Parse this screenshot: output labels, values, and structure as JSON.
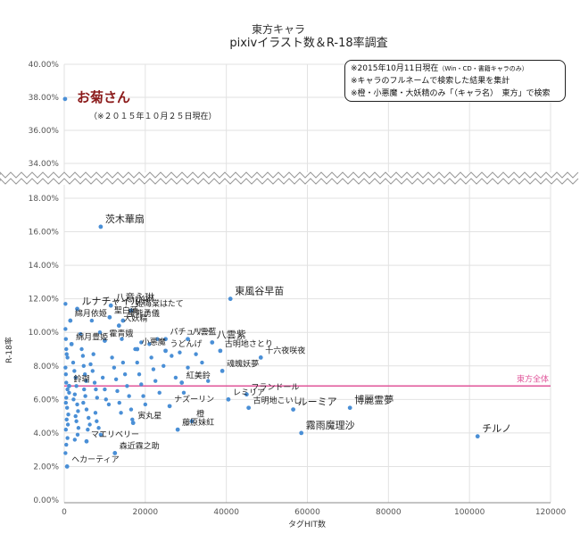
{
  "chart_data": {
    "type": "scatter",
    "title": "東方キャラ",
    "subtitle": "pixivイラスト数＆R-18率調査",
    "xlabel": "タグHIT数",
    "ylabel": "R-18率",
    "xlim": [
      0,
      120000
    ],
    "x_ticks": [
      "0",
      "20000",
      "40000",
      "60000",
      "80000",
      "100000",
      "120000"
    ],
    "upper_ylim": [
      0.33,
      0.4
    ],
    "upper_y_ticks": [
      "40.00%",
      "38.00%",
      "36.00%",
      "34.00%"
    ],
    "lower_ylim": [
      0,
      0.18
    ],
    "lower_y_ticks": [
      "18.00%",
      "16.00%",
      "14.00%",
      "12.00%",
      "10.00%",
      "8.00%",
      "6.00%",
      "4.00%",
      "2.00%",
      "0.00%"
    ],
    "reference_line": {
      "label": "東方全体",
      "y": 0.068,
      "color": "#e0559a"
    },
    "notes": [
      {
        "text": "※2015年10月11日現在",
        "small": "（Win・CD・書籍キャラのみ）"
      },
      {
        "text": "※キャラのフルネームで検索した結果を集計"
      },
      {
        "text": "※橙・小悪魔・大妖精のみ「（キャラ名）　東方」で検索"
      }
    ],
    "special": {
      "label": "お菊さん",
      "note": "（※２０１５年１０月２５日現在）",
      "x": 200,
      "y": 0.379,
      "color": "#8b1a1a"
    },
    "point_color": "#4a8fd6",
    "labeled_points": [
      {
        "name": "茨木華扇",
        "x": 9000,
        "y": 0.163,
        "color": "#e03030",
        "big": true
      },
      {
        "name": "東風谷早苗",
        "x": 41000,
        "y": 0.12,
        "big": true
      },
      {
        "name": "ルナチャイルド",
        "x": 3200,
        "y": 0.114,
        "big": true
      },
      {
        "name": "八意永琳",
        "x": 11500,
        "y": 0.116,
        "big": true
      },
      {
        "name": "姫海棠はたて",
        "x": 16500,
        "y": 0.113
      },
      {
        "name": "綿月依姫",
        "x": 1500,
        "y": 0.107
      },
      {
        "name": "聖白蓮",
        "x": 11200,
        "y": 0.109
      },
      {
        "name": "星熊勇儀",
        "x": 14500,
        "y": 0.107
      },
      {
        "name": "大妖精",
        "x": 13500,
        "y": 0.104
      },
      {
        "name": "八雲紫",
        "x": 36500,
        "y": 0.094,
        "big": true
      },
      {
        "name": "パチュリー",
        "x": 25000,
        "y": 0.096
      },
      {
        "name": "八雲藍",
        "x": 30500,
        "y": 0.096
      },
      {
        "name": "霍青娥",
        "x": 10000,
        "y": 0.095
      },
      {
        "name": "綿月豊姫",
        "x": 1800,
        "y": 0.093
      },
      {
        "name": "古明地さとり",
        "x": 38500,
        "y": 0.089
      },
      {
        "name": "小悪魔",
        "x": 18000,
        "y": 0.09
      },
      {
        "name": "うどんげ",
        "x": 25000,
        "y": 0.089
      },
      {
        "name": "十六夜咲夜",
        "x": 48500,
        "y": 0.085
      },
      {
        "name": "魂魄妖夢",
        "x": 39000,
        "y": 0.077
      },
      {
        "name": "鈴瑚",
        "x": 1200,
        "y": 0.068
      },
      {
        "name": "紅美鈴",
        "x": 29000,
        "y": 0.07
      },
      {
        "name": "フランドール",
        "x": 45000,
        "y": 0.063
      },
      {
        "name": "レミリア",
        "x": 40500,
        "y": 0.06
      },
      {
        "name": "博麗霊夢",
        "x": 70500,
        "y": 0.055,
        "big": true
      },
      {
        "name": "ナズーリン",
        "x": 26000,
        "y": 0.056
      },
      {
        "name": "古明地こいし",
        "x": 45500,
        "y": 0.055
      },
      {
        "name": "ルーミア",
        "x": 56500,
        "y": 0.054,
        "big": true
      },
      {
        "name": "橙",
        "x": 31500,
        "y": 0.047
      },
      {
        "name": "寅丸星",
        "x": 17000,
        "y": 0.046
      },
      {
        "name": "藤原妹紅",
        "x": 28000,
        "y": 0.042
      },
      {
        "name": "チルノ",
        "x": 102000,
        "y": 0.038,
        "big": true
      },
      {
        "name": "霧雨魔理沙",
        "x": 58500,
        "y": 0.04,
        "big": true
      },
      {
        "name": "マエリベリー",
        "x": 5500,
        "y": 0.035
      },
      {
        "name": "森近霖之助",
        "x": 12500,
        "y": 0.028
      },
      {
        "name": "ヘカーティア",
        "x": 700,
        "y": 0.02
      }
    ],
    "other_points": [
      [
        300,
        0.117
      ],
      [
        300,
        0.102
      ],
      [
        400,
        0.096
      ],
      [
        500,
        0.09
      ],
      [
        600,
        0.087
      ],
      [
        800,
        0.085
      ],
      [
        300,
        0.079
      ],
      [
        400,
        0.075
      ],
      [
        500,
        0.07
      ],
      [
        800,
        0.066
      ],
      [
        1200,
        0.064
      ],
      [
        500,
        0.061
      ],
      [
        400,
        0.058
      ],
      [
        700,
        0.055
      ],
      [
        1000,
        0.051
      ],
      [
        600,
        0.048
      ],
      [
        900,
        0.045
      ],
      [
        400,
        0.042
      ],
      [
        800,
        0.037
      ],
      [
        500,
        0.033
      ],
      [
        300,
        0.028
      ],
      [
        2200,
        0.082
      ],
      [
        2500,
        0.077
      ],
      [
        2800,
        0.073
      ],
      [
        3000,
        0.068
      ],
      [
        2600,
        0.063
      ],
      [
        2300,
        0.06
      ],
      [
        3200,
        0.057
      ],
      [
        3400,
        0.053
      ],
      [
        2800,
        0.05
      ],
      [
        3000,
        0.047
      ],
      [
        3500,
        0.043
      ],
      [
        3300,
        0.039
      ],
      [
        2600,
        0.036
      ],
      [
        4000,
        0.099
      ],
      [
        4300,
        0.09
      ],
      [
        4600,
        0.086
      ],
      [
        4800,
        0.08
      ],
      [
        5100,
        0.075
      ],
      [
        5400,
        0.071
      ],
      [
        4900,
        0.066
      ],
      [
        5200,
        0.062
      ],
      [
        4700,
        0.058
      ],
      [
        5500,
        0.054
      ],
      [
        6000,
        0.049
      ],
      [
        6300,
        0.045
      ],
      [
        5800,
        0.042
      ],
      [
        6500,
        0.081
      ],
      [
        7000,
        0.077
      ],
      [
        7200,
        0.087
      ],
      [
        7500,
        0.07
      ],
      [
        7800,
        0.066
      ],
      [
        8100,
        0.061
      ],
      [
        7700,
        0.052
      ],
      [
        8000,
        0.047
      ],
      [
        8500,
        0.043
      ],
      [
        9000,
        0.039
      ],
      [
        9500,
        0.073
      ],
      [
        10000,
        0.066
      ],
      [
        10300,
        0.06
      ],
      [
        11000,
        0.057
      ],
      [
        11800,
        0.085
      ],
      [
        12300,
        0.079
      ],
      [
        12800,
        0.072
      ],
      [
        13100,
        0.065
      ],
      [
        13600,
        0.058
      ],
      [
        14000,
        0.052
      ],
      [
        14500,
        0.082
      ],
      [
        15000,
        0.075
      ],
      [
        15500,
        0.068
      ],
      [
        16000,
        0.062
      ],
      [
        16500,
        0.054
      ],
      [
        16800,
        0.048
      ],
      [
        17500,
        0.09
      ],
      [
        18000,
        0.082
      ],
      [
        18500,
        0.075
      ],
      [
        19000,
        0.069
      ],
      [
        19500,
        0.062
      ],
      [
        20000,
        0.057
      ],
      [
        21000,
        0.093
      ],
      [
        21500,
        0.085
      ],
      [
        22000,
        0.078
      ],
      [
        22500,
        0.071
      ],
      [
        23000,
        0.096
      ],
      [
        23500,
        0.064
      ],
      [
        24500,
        0.08
      ],
      [
        26500,
        0.086
      ],
      [
        27500,
        0.073
      ],
      [
        28500,
        0.088
      ],
      [
        29500,
        0.064
      ],
      [
        30500,
        0.079
      ],
      [
        32500,
        0.087
      ],
      [
        34000,
        0.082
      ],
      [
        35500,
        0.071
      ],
      [
        6800,
        0.107
      ],
      [
        8800,
        0.1
      ],
      [
        19000,
        0.094
      ],
      [
        14200,
        0.096
      ]
    ]
  }
}
